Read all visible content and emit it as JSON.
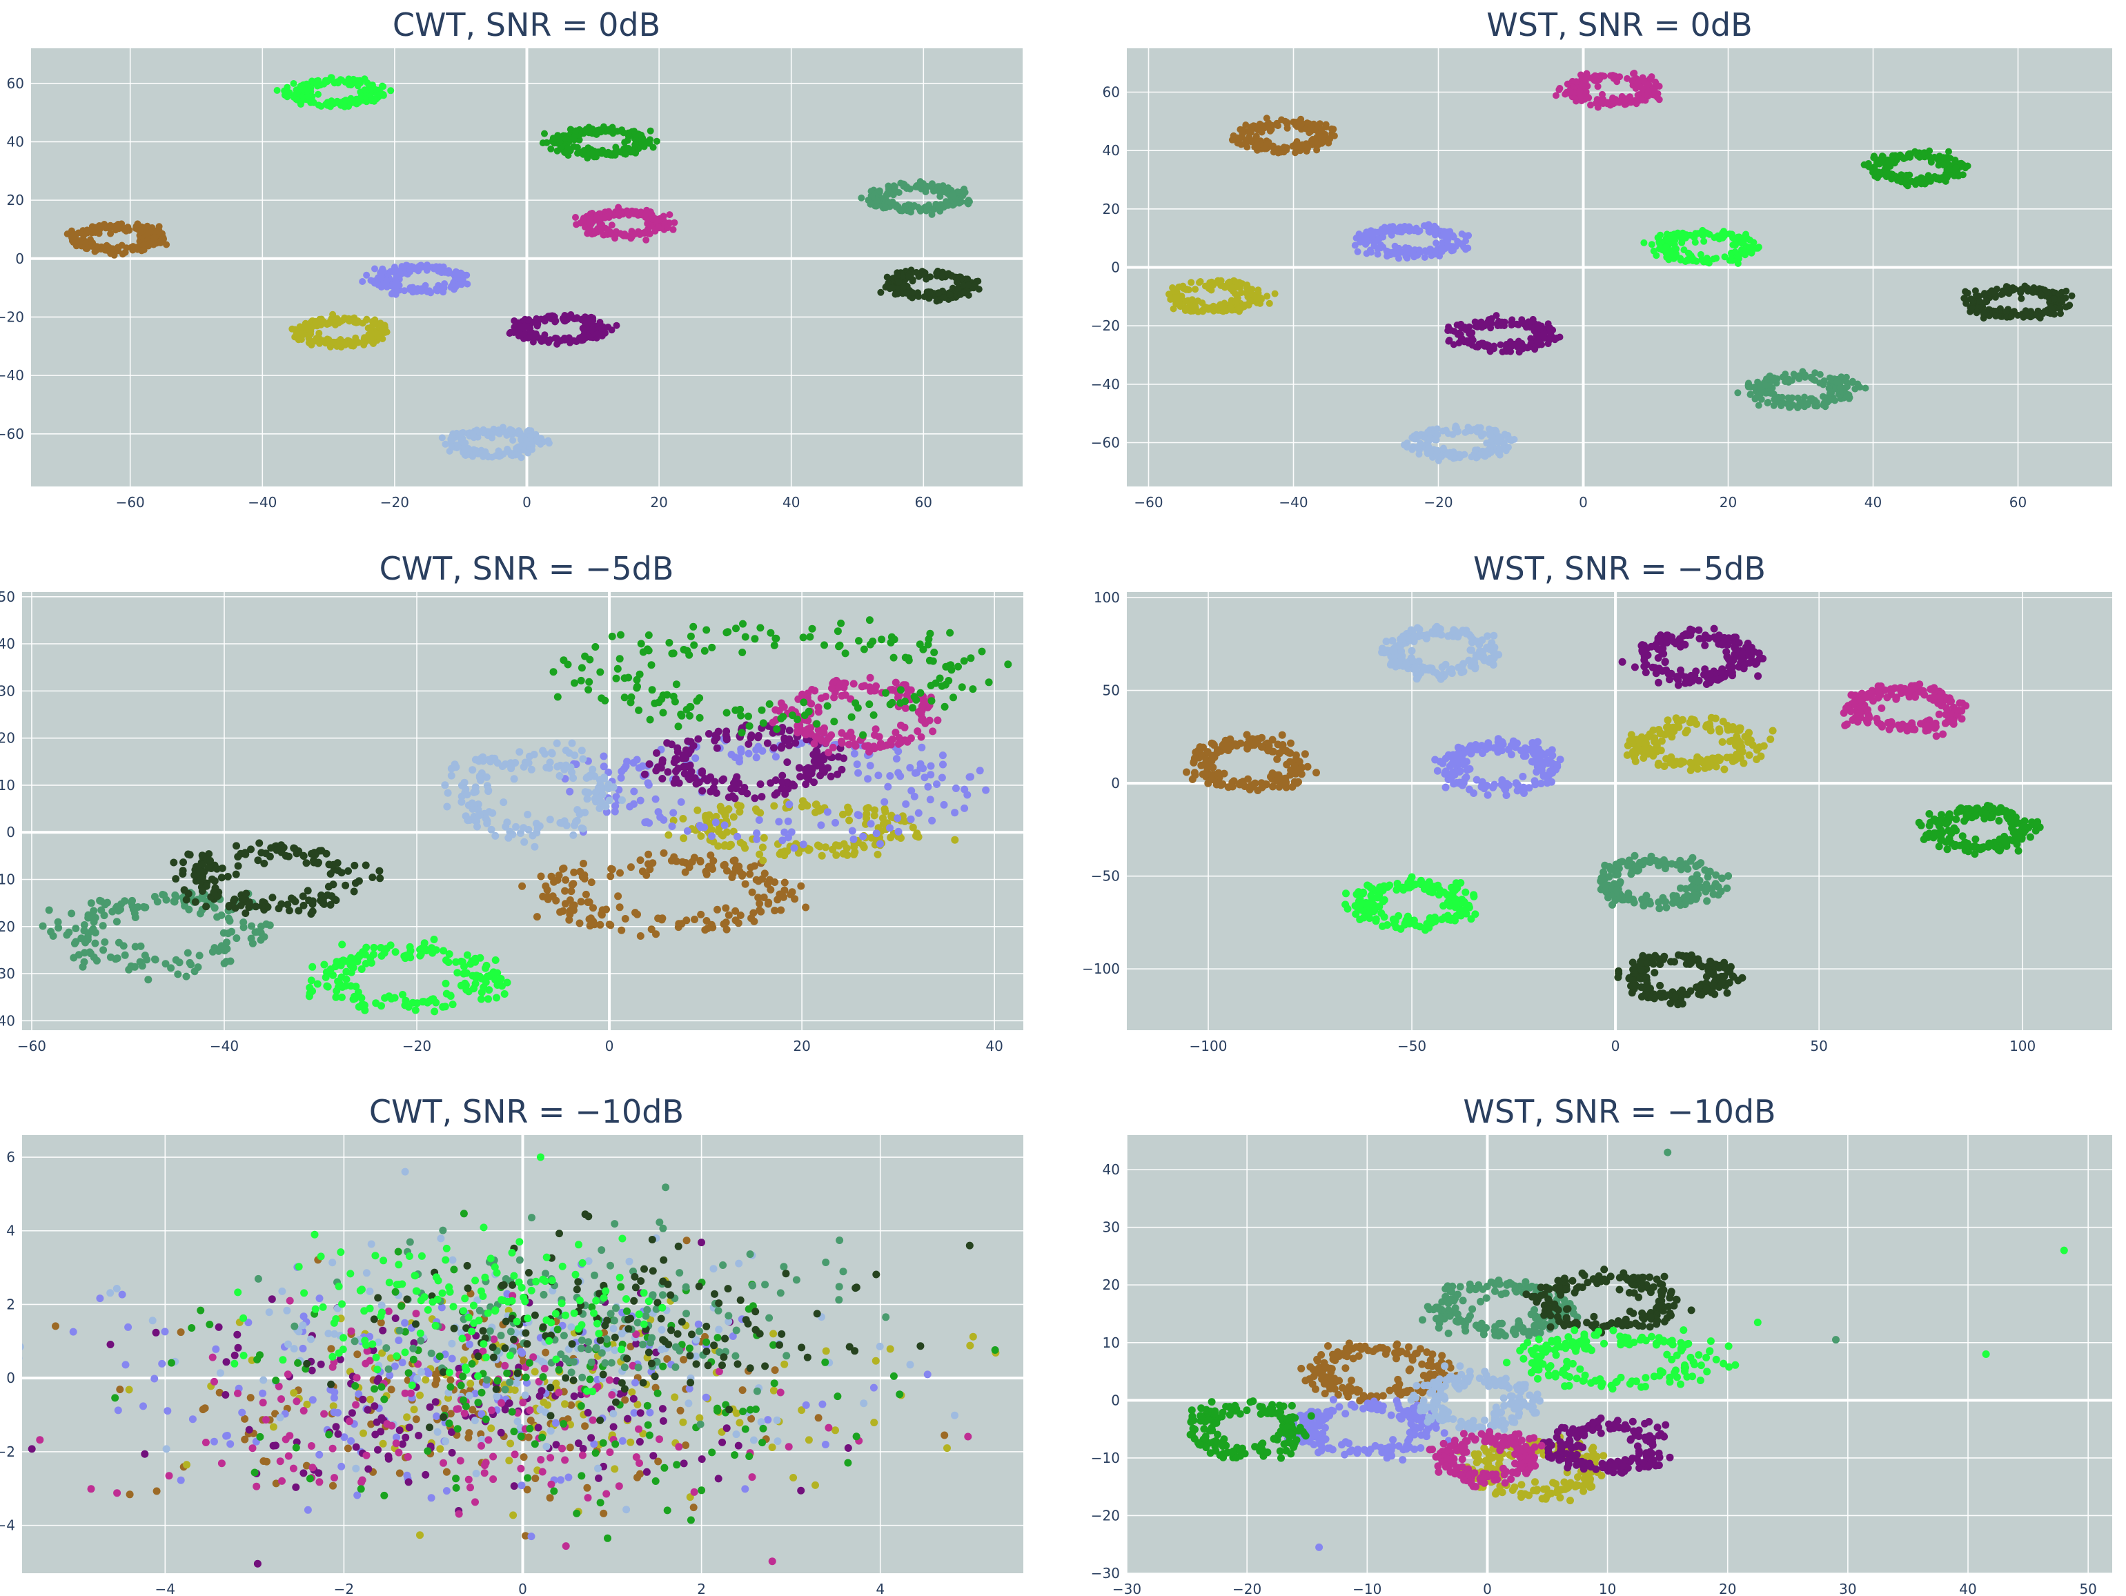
{
  "colors": {
    "background": "#ffffff",
    "plot_bg": "#c3cfcf",
    "text": "#2a3f5f",
    "classes": [
      "#9c6a26",
      "#b3b222",
      "#8686f0",
      "#72107c",
      "#9fbbe0",
      "#bf2e93",
      "#1aa31f",
      "#499b6e",
      "#26431f",
      "#1eff3e"
    ]
  },
  "chart_data": [
    {
      "type": "scatter",
      "title": "CWT, SNR = 0dB",
      "xlim": [
        -75,
        75
      ],
      "ylim": [
        -78,
        72
      ],
      "xticks": [
        -60,
        -40,
        -20,
        0,
        20,
        40,
        60
      ],
      "yticks": [
        -60,
        -40,
        -20,
        0,
        20,
        40,
        60
      ],
      "grid": true,
      "marker": "ring",
      "clusters": [
        {
          "class": 0,
          "cx": -62,
          "cy": 7,
          "rx": 6,
          "ry": 4
        },
        {
          "class": 1,
          "cx": -28,
          "cy": -25,
          "rx": 6,
          "ry": 4
        },
        {
          "class": 2,
          "cx": -16,
          "cy": -7,
          "rx": 6,
          "ry": 4
        },
        {
          "class": 3,
          "cx": 5,
          "cy": -24,
          "rx": 6,
          "ry": 4
        },
        {
          "class": 4,
          "cx": -5,
          "cy": -63,
          "rx": 6,
          "ry": 4
        },
        {
          "class": 5,
          "cx": 15,
          "cy": 12,
          "rx": 5.5,
          "ry": 4
        },
        {
          "class": 6,
          "cx": 11,
          "cy": 40,
          "rx": 6.5,
          "ry": 4
        },
        {
          "class": 7,
          "cx": 59,
          "cy": 21,
          "rx": 6,
          "ry": 4
        },
        {
          "class": 8,
          "cx": 61,
          "cy": -9,
          "rx": 6,
          "ry": 4
        },
        {
          "class": 9,
          "cx": -29,
          "cy": 57,
          "rx": 6,
          "ry": 4
        }
      ]
    },
    {
      "type": "scatter",
      "title": "WST, SNR = 0dB",
      "xlim": [
        -63,
        73
      ],
      "ylim": [
        -75,
        75
      ],
      "xticks": [
        -60,
        -40,
        -20,
        0,
        20,
        40,
        60
      ],
      "yticks": [
        -60,
        -40,
        -20,
        0,
        20,
        40,
        60
      ],
      "grid": true,
      "marker": "ring",
      "clusters": [
        {
          "class": 0,
          "cx": -41,
          "cy": 45,
          "rx": 5.5,
          "ry": 4.5
        },
        {
          "class": 1,
          "cx": -51,
          "cy": -10,
          "rx": 5.5,
          "ry": 4.5
        },
        {
          "class": 2,
          "cx": -24,
          "cy": 9,
          "rx": 6,
          "ry": 4.5
        },
        {
          "class": 3,
          "cx": -11,
          "cy": -23,
          "rx": 6,
          "ry": 4.5
        },
        {
          "class": 4,
          "cx": -17,
          "cy": -60,
          "rx": 6,
          "ry": 4.5
        },
        {
          "class": 5,
          "cx": 4,
          "cy": 61,
          "rx": 5.5,
          "ry": 4.5
        },
        {
          "class": 6,
          "cx": 46,
          "cy": 34,
          "rx": 5.5,
          "ry": 4.5
        },
        {
          "class": 7,
          "cx": 30,
          "cy": -42,
          "rx": 6,
          "ry": 4.5
        },
        {
          "class": 8,
          "cx": 60,
          "cy": -12,
          "rx": 6,
          "ry": 4.5
        },
        {
          "class": 9,
          "cx": 17,
          "cy": 7,
          "rx": 6,
          "ry": 4.5
        }
      ]
    },
    {
      "type": "scatter",
      "title": "CWT, SNR = −5dB",
      "xlim": [
        -61,
        43
      ],
      "ylim": [
        -42,
        51
      ],
      "xticks": [
        -60,
        -40,
        -20,
        0,
        20,
        40
      ],
      "yticks": [
        -40,
        -30,
        -20,
        -10,
        0,
        10,
        20,
        30,
        40,
        50
      ],
      "grid": true,
      "marker": "ring",
      "clusters": [
        {
          "class": 0,
          "cx": 6,
          "cy": -13,
          "rx": 11,
          "ry": 7
        },
        {
          "class": 1,
          "cx": 20,
          "cy": 1,
          "rx": 10,
          "ry": 5
        },
        {
          "class": 2,
          "cx": 17,
          "cy": 9,
          "rx": 17,
          "ry": 9
        },
        {
          "class": 3,
          "cx": 14,
          "cy": 15,
          "rx": 8,
          "ry": 6
        },
        {
          "class": 4,
          "cx": -8,
          "cy": 8,
          "rx": 7,
          "ry": 8
        },
        {
          "class": 5,
          "cx": 26,
          "cy": 25,
          "rx": 7,
          "ry": 6
        },
        {
          "class": 6,
          "cx": 17,
          "cy": 33,
          "rx": 18,
          "ry": 9
        },
        {
          "class": 7,
          "cx": -46,
          "cy": -21,
          "rx": 9,
          "ry": 7
        },
        {
          "class": 8,
          "cx": -35,
          "cy": -10,
          "rx": 8,
          "ry": 6
        },
        {
          "class": 9,
          "cx": -21,
          "cy": -31,
          "rx": 8,
          "ry": 6
        }
      ]
    },
    {
      "type": "scatter",
      "title": "WST, SNR = −5dB",
      "xlim": [
        -120,
        122
      ],
      "ylim": [
        -133,
        103
      ],
      "xticks": [
        -100,
        -50,
        0,
        50,
        100
      ],
      "yticks": [
        -100,
        -50,
        0,
        50,
        100
      ],
      "grid": true,
      "marker": "ring",
      "clusters": [
        {
          "class": 0,
          "cx": -90,
          "cy": 10,
          "rx": 12,
          "ry": 12
        },
        {
          "class": 1,
          "cx": 19,
          "cy": 21,
          "rx": 13,
          "ry": 11
        },
        {
          "class": 2,
          "cx": -28,
          "cy": 9,
          "rx": 13,
          "ry": 11
        },
        {
          "class": 3,
          "cx": 20,
          "cy": 68,
          "rx": 12,
          "ry": 12
        },
        {
          "class": 4,
          "cx": -43,
          "cy": 71,
          "rx": 11,
          "ry": 11
        },
        {
          "class": 5,
          "cx": 71,
          "cy": 40,
          "rx": 12,
          "ry": 10
        },
        {
          "class": 6,
          "cx": 90,
          "cy": -25,
          "rx": 11,
          "ry": 10
        },
        {
          "class": 7,
          "cx": 10,
          "cy": -53,
          "rx": 13,
          "ry": 11
        },
        {
          "class": 8,
          "cx": 15,
          "cy": -104,
          "rx": 11,
          "ry": 11
        },
        {
          "class": 9,
          "cx": -50,
          "cy": -65,
          "rx": 12,
          "ry": 11
        }
      ]
    },
    {
      "type": "scatter",
      "title": "CWT, SNR = −10dB",
      "xlim": [
        -5.6,
        5.6
      ],
      "ylim": [
        -5.3,
        6.6
      ],
      "xticks": [
        -4,
        -2,
        0,
        2,
        4
      ],
      "yticks": [
        -4,
        -2,
        0,
        2,
        4,
        6
      ],
      "grid": true,
      "marker": "blob",
      "clusters": [
        {
          "class": 0,
          "cx": -0.6,
          "cy": -0.6,
          "rx": 1.9,
          "ry": 1.4
        },
        {
          "class": 1,
          "cx": 0.4,
          "cy": -0.6,
          "rx": 1.9,
          "ry": 1.4
        },
        {
          "class": 2,
          "cx": -1.2,
          "cy": -0.3,
          "rx": 2.0,
          "ry": 1.5
        },
        {
          "class": 3,
          "cx": -0.7,
          "cy": -0.9,
          "rx": 1.8,
          "ry": 1.3
        },
        {
          "class": 4,
          "cx": -0.4,
          "cy": 0.5,
          "rx": 2.0,
          "ry": 1.6
        },
        {
          "class": 5,
          "cx": -0.6,
          "cy": -1.1,
          "rx": 1.9,
          "ry": 1.4
        },
        {
          "class": 6,
          "cx": 0.5,
          "cy": -0.3,
          "rx": 2.0,
          "ry": 1.6
        },
        {
          "class": 7,
          "cx": 0.6,
          "cy": 1.6,
          "rx": 1.4,
          "ry": 1.1
        },
        {
          "class": 8,
          "cx": 1.0,
          "cy": 1.4,
          "rx": 1.4,
          "ry": 1.0
        },
        {
          "class": 9,
          "cx": -0.6,
          "cy": 1.9,
          "rx": 1.1,
          "ry": 0.9
        }
      ],
      "outliers": [
        {
          "class": 8,
          "x": 5.0,
          "y": 3.6
        },
        {
          "class": 9,
          "x": 0.2,
          "y": 6.0
        }
      ]
    },
    {
      "type": "scatter",
      "title": "WST, SNR = −10dB",
      "xlim": [
        -30,
        52
      ],
      "ylim": [
        -30,
        46
      ],
      "xticks": [
        -30,
        -20,
        -10,
        0,
        10,
        20,
        30,
        40,
        50
      ],
      "yticks": [
        -30,
        -20,
        -10,
        0,
        10,
        20,
        30,
        40
      ],
      "grid": true,
      "marker": "ring",
      "clusters": [
        {
          "class": 0,
          "cx": -9,
          "cy": 5,
          "rx": 5,
          "ry": 4
        },
        {
          "class": 1,
          "cx": 4,
          "cy": -12,
          "rx": 5,
          "ry": 4
        },
        {
          "class": 2,
          "cx": -10,
          "cy": -5,
          "rx": 5,
          "ry": 4
        },
        {
          "class": 3,
          "cx": 10,
          "cy": -8,
          "rx": 4,
          "ry": 4
        },
        {
          "class": 4,
          "cx": -1,
          "cy": 0,
          "rx": 4,
          "ry": 4
        },
        {
          "class": 5,
          "cx": 0,
          "cy": -10,
          "rx": 3.5,
          "ry": 3.5
        },
        {
          "class": 6,
          "cx": -20,
          "cy": -5,
          "rx": 4,
          "ry": 4
        },
        {
          "class": 7,
          "cx": 1,
          "cy": 16,
          "rx": 5,
          "ry": 4
        },
        {
          "class": 8,
          "cx": 10,
          "cy": 17,
          "rx": 5,
          "ry": 4
        },
        {
          "class": 9,
          "cx": 11,
          "cy": 7,
          "rx": 7,
          "ry": 4
        }
      ],
      "outliers": [
        {
          "class": 7,
          "x": 15,
          "y": 43
        },
        {
          "class": 9,
          "x": 48,
          "y": 26
        },
        {
          "class": 9,
          "x": 41.5,
          "y": 8
        },
        {
          "class": 7,
          "x": 29,
          "y": 10.5
        },
        {
          "class": 9,
          "x": 22.5,
          "y": 13.5
        },
        {
          "class": 2,
          "x": -14,
          "y": -25.5
        }
      ]
    }
  ]
}
